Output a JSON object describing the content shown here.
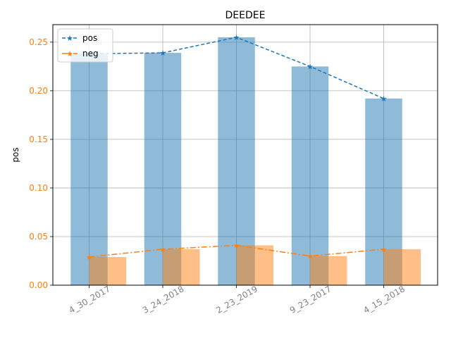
{
  "chart_data": {
    "type": "bar",
    "title": "DEEDEE",
    "xlabel": "",
    "ylabel": "pos",
    "ylim": [
      0,
      0.268
    ],
    "yticks": [
      "0.00",
      "0.05",
      "0.10",
      "0.15",
      "0.20",
      "0.25"
    ],
    "categories": [
      "4_30_2017",
      "3_24_2018",
      "2_23_2019",
      "9_23_2017",
      "4_15_2018"
    ],
    "grid": true,
    "legend": "upper-left",
    "series": [
      {
        "name": "pos",
        "values": [
          0.238,
          0.239,
          0.255,
          0.225,
          0.192
        ],
        "bar_color": "#1f77b4",
        "line_color": "#1f77b4",
        "line_style": "dashed",
        "marker": "star"
      },
      {
        "name": "neg",
        "values": [
          0.029,
          0.037,
          0.041,
          0.03,
          0.037
        ],
        "bar_color": "#ff7f0e",
        "line_color": "#ff7f0e",
        "line_style": "dashdot",
        "marker": "star"
      }
    ],
    "colors": {
      "ytick": "#ff7f0e",
      "xtick": "#808080"
    }
  }
}
